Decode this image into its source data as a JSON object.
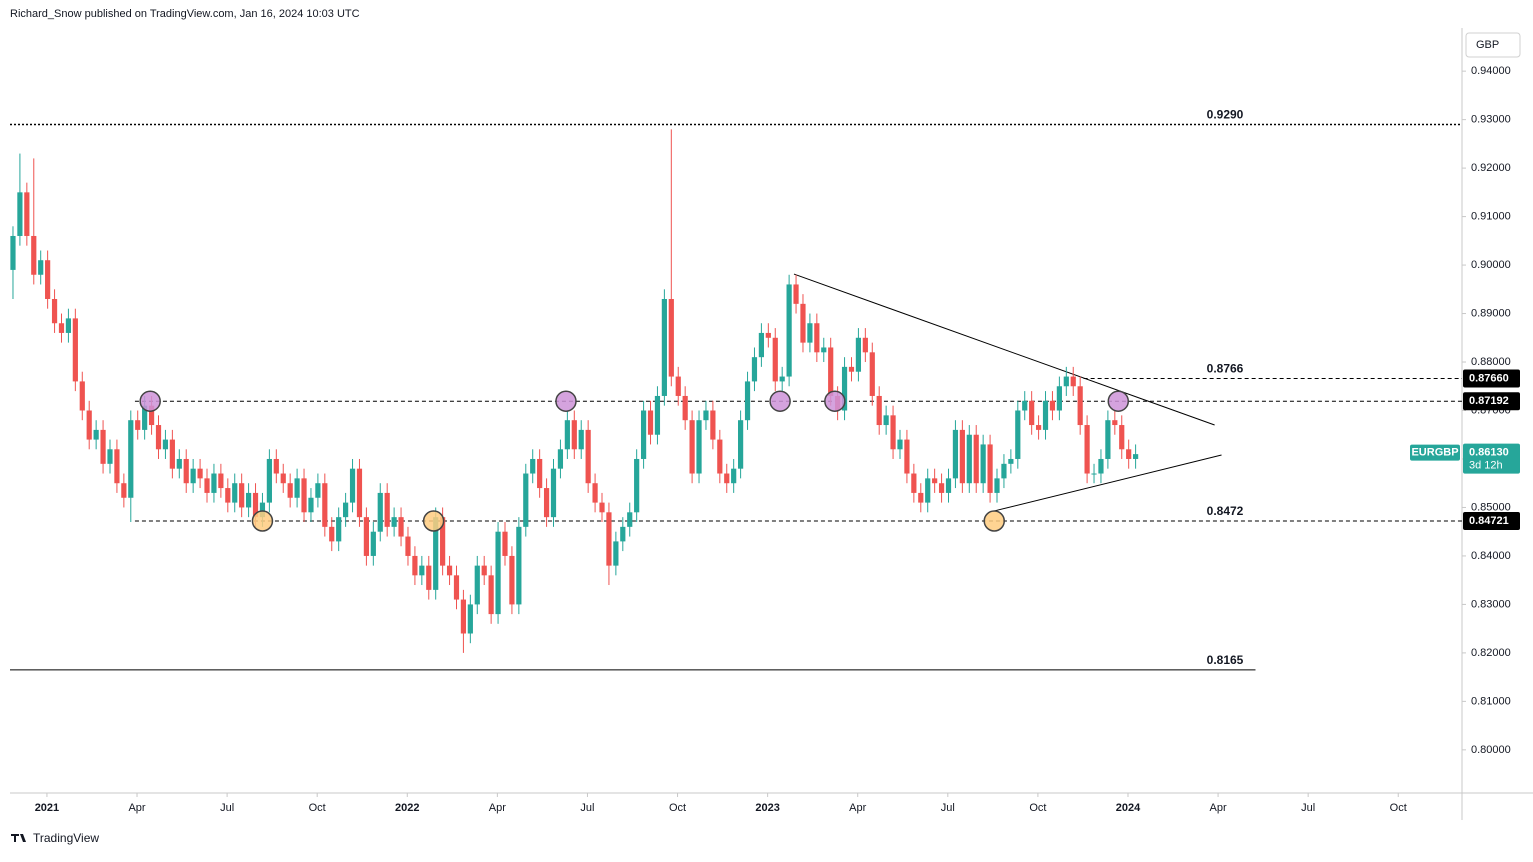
{
  "header": {
    "byline": "Richard_Snow published on TradingView.com, Jan 16, 2024 10:03 UTC"
  },
  "footer": {
    "brand": "TradingView"
  },
  "chart_data": {
    "type": "candlestick",
    "symbol": "EURGBP",
    "countdown": "3d 12h",
    "currency": "GBP",
    "up_color": "#26a69a",
    "down_color": "#ef5350",
    "open": [
      0.899,
      0.906,
      0.915,
      0.906,
      0.898,
      0.901,
      0.893,
      0.888,
      0.886,
      0.889,
      0.876,
      0.87,
      0.864,
      0.866,
      0.859,
      0.862,
      0.855,
      0.852,
      0.868,
      0.866,
      0.871,
      0.867,
      0.862,
      0.864,
      0.858,
      0.86,
      0.855,
      0.858,
      0.856,
      0.853,
      0.857,
      0.854,
      0.851,
      0.855,
      0.85,
      0.853,
      0.848,
      0.851,
      0.86,
      0.857,
      0.855,
      0.852,
      0.856,
      0.849,
      0.852,
      0.855,
      0.846,
      0.843,
      0.848,
      0.851,
      0.858,
      0.848,
      0.84,
      0.845,
      0.853,
      0.846,
      0.848,
      0.844,
      0.84,
      0.836,
      0.838,
      0.833,
      0.848,
      0.838,
      0.836,
      0.831,
      0.824,
      0.83,
      0.838,
      0.836,
      0.828,
      0.845,
      0.84,
      0.83,
      0.846,
      0.857,
      0.86,
      0.854,
      0.848,
      0.858,
      0.862,
      0.868,
      0.862,
      0.866,
      0.855,
      0.851,
      0.849,
      0.838,
      0.843,
      0.846,
      0.849,
      0.86,
      0.87,
      0.865,
      0.873,
      0.893,
      0.877,
      0.873,
      0.868,
      0.857,
      0.868,
      0.87,
      0.864,
      0.857,
      0.855,
      0.858,
      0.868,
      0.876,
      0.881,
      0.886,
      0.885,
      0.876,
      0.877,
      0.896,
      0.892,
      0.884,
      0.888,
      0.882,
      0.883,
      0.873,
      0.87,
      0.879,
      0.878,
      0.885,
      0.882,
      0.873,
      0.867,
      0.869,
      0.862,
      0.864,
      0.857,
      0.853,
      0.851,
      0.856,
      0.855,
      0.853,
      0.856,
      0.866,
      0.855,
      0.865,
      0.855,
      0.863,
      0.853,
      0.856,
      0.859,
      0.86,
      0.87,
      0.872,
      0.867,
      0.866,
      0.872,
      0.87,
      0.875,
      0.877,
      0.875,
      0.867,
      0.857,
      0.857,
      0.86,
      0.868,
      0.867,
      0.862,
      0.86
    ],
    "high": [
      0.908,
      0.923,
      0.917,
      0.922,
      0.903,
      0.903,
      0.895,
      0.89,
      0.891,
      0.891,
      0.878,
      0.872,
      0.868,
      0.868,
      0.864,
      0.864,
      0.857,
      0.87,
      0.87,
      0.873,
      0.873,
      0.869,
      0.866,
      0.866,
      0.862,
      0.862,
      0.86,
      0.86,
      0.858,
      0.859,
      0.859,
      0.856,
      0.857,
      0.857,
      0.855,
      0.855,
      0.853,
      0.862,
      0.862,
      0.859,
      0.857,
      0.858,
      0.858,
      0.854,
      0.857,
      0.857,
      0.848,
      0.85,
      0.853,
      0.86,
      0.86,
      0.85,
      0.847,
      0.855,
      0.855,
      0.85,
      0.85,
      0.846,
      0.842,
      0.84,
      0.84,
      0.85,
      0.85,
      0.84,
      0.838,
      0.833,
      0.832,
      0.84,
      0.84,
      0.838,
      0.847,
      0.847,
      0.842,
      0.848,
      0.859,
      0.862,
      0.862,
      0.856,
      0.86,
      0.864,
      0.87,
      0.87,
      0.868,
      0.868,
      0.857,
      0.853,
      0.851,
      0.845,
      0.848,
      0.851,
      0.862,
      0.872,
      0.872,
      0.875,
      0.895,
      0.928,
      0.879,
      0.875,
      0.87,
      0.87,
      0.872,
      0.872,
      0.866,
      0.859,
      0.86,
      0.87,
      0.878,
      0.883,
      0.888,
      0.888,
      0.887,
      0.879,
      0.898,
      0.898,
      0.894,
      0.89,
      0.89,
      0.885,
      0.885,
      0.875,
      0.881,
      0.881,
      0.887,
      0.887,
      0.884,
      0.875,
      0.871,
      0.871,
      0.866,
      0.866,
      0.859,
      0.855,
      0.858,
      0.858,
      0.857,
      0.858,
      0.868,
      0.868,
      0.867,
      0.867,
      0.865,
      0.865,
      0.858,
      0.861,
      0.862,
      0.872,
      0.874,
      0.874,
      0.869,
      0.874,
      0.874,
      0.877,
      0.879,
      0.879,
      0.877,
      0.869,
      0.859,
      0.862,
      0.87,
      0.87,
      0.869,
      0.864,
      0.863
    ],
    "low": [
      0.893,
      0.904,
      0.904,
      0.896,
      0.896,
      0.891,
      0.886,
      0.884,
      0.884,
      0.874,
      0.868,
      0.862,
      0.862,
      0.857,
      0.857,
      0.853,
      0.85,
      0.847,
      0.864,
      0.864,
      0.865,
      0.86,
      0.86,
      0.856,
      0.856,
      0.853,
      0.853,
      0.854,
      0.851,
      0.851,
      0.852,
      0.849,
      0.849,
      0.848,
      0.848,
      0.846,
      0.846,
      0.849,
      0.855,
      0.853,
      0.85,
      0.85,
      0.847,
      0.847,
      0.85,
      0.844,
      0.841,
      0.841,
      0.846,
      0.849,
      0.846,
      0.838,
      0.838,
      0.843,
      0.844,
      0.844,
      0.842,
      0.838,
      0.834,
      0.834,
      0.831,
      0.831,
      0.836,
      0.834,
      0.829,
      0.82,
      0.822,
      0.828,
      0.834,
      0.826,
      0.826,
      0.838,
      0.828,
      0.828,
      0.844,
      0.855,
      0.852,
      0.846,
      0.846,
      0.856,
      0.86,
      0.86,
      0.86,
      0.853,
      0.849,
      0.847,
      0.834,
      0.836,
      0.841,
      0.844,
      0.847,
      0.858,
      0.863,
      0.863,
      0.871,
      0.875,
      0.871,
      0.866,
      0.855,
      0.855,
      0.866,
      0.862,
      0.855,
      0.853,
      0.853,
      0.856,
      0.866,
      0.874,
      0.879,
      0.883,
      0.874,
      0.874,
      0.875,
      0.89,
      0.882,
      0.882,
      0.88,
      0.88,
      0.871,
      0.868,
      0.868,
      0.876,
      0.876,
      0.88,
      0.871,
      0.865,
      0.865,
      0.86,
      0.86,
      0.855,
      0.851,
      0.849,
      0.849,
      0.853,
      0.851,
      0.851,
      0.854,
      0.853,
      0.853,
      0.853,
      0.853,
      0.851,
      0.851,
      0.854,
      0.857,
      0.858,
      0.868,
      0.865,
      0.864,
      0.864,
      0.868,
      0.868,
      0.873,
      0.873,
      0.865,
      0.855,
      0.855,
      0.855,
      0.858,
      0.865,
      0.86,
      0.858,
      0.858
    ],
    "close": [
      0.906,
      0.915,
      0.906,
      0.898,
      0.901,
      0.893,
      0.888,
      0.886,
      0.889,
      0.876,
      0.87,
      0.864,
      0.866,
      0.859,
      0.862,
      0.855,
      0.852,
      0.868,
      0.866,
      0.871,
      0.867,
      0.862,
      0.864,
      0.858,
      0.86,
      0.855,
      0.858,
      0.856,
      0.853,
      0.857,
      0.854,
      0.851,
      0.855,
      0.85,
      0.853,
      0.848,
      0.851,
      0.86,
      0.857,
      0.855,
      0.852,
      0.856,
      0.849,
      0.852,
      0.855,
      0.846,
      0.843,
      0.848,
      0.851,
      0.858,
      0.848,
      0.84,
      0.845,
      0.853,
      0.846,
      0.848,
      0.844,
      0.84,
      0.836,
      0.838,
      0.833,
      0.848,
      0.838,
      0.836,
      0.831,
      0.824,
      0.83,
      0.838,
      0.836,
      0.828,
      0.845,
      0.84,
      0.83,
      0.846,
      0.857,
      0.86,
      0.854,
      0.848,
      0.858,
      0.862,
      0.868,
      0.862,
      0.866,
      0.855,
      0.851,
      0.849,
      0.838,
      0.843,
      0.846,
      0.849,
      0.86,
      0.87,
      0.865,
      0.873,
      0.893,
      0.877,
      0.873,
      0.868,
      0.857,
      0.868,
      0.87,
      0.864,
      0.857,
      0.855,
      0.858,
      0.868,
      0.876,
      0.881,
      0.886,
      0.885,
      0.876,
      0.877,
      0.896,
      0.892,
      0.884,
      0.888,
      0.882,
      0.883,
      0.873,
      0.87,
      0.879,
      0.878,
      0.885,
      0.882,
      0.873,
      0.867,
      0.869,
      0.862,
      0.864,
      0.857,
      0.853,
      0.851,
      0.856,
      0.855,
      0.853,
      0.856,
      0.866,
      0.855,
      0.865,
      0.855,
      0.863,
      0.853,
      0.856,
      0.859,
      0.86,
      0.87,
      0.872,
      0.867,
      0.866,
      0.872,
      0.87,
      0.875,
      0.877,
      0.875,
      0.867,
      0.857,
      0.857,
      0.86,
      0.868,
      0.867,
      0.862,
      0.86,
      0.861
    ],
    "xlim": [
      -0.43,
      209.1
    ],
    "xticks": [
      {
        "value": 4.9,
        "label": "2021"
      },
      {
        "value": 17.9,
        "label": "Apr"
      },
      {
        "value": 30.9,
        "label": "Jul"
      },
      {
        "value": 43.9,
        "label": "Oct"
      },
      {
        "value": 56.9,
        "label": "2022"
      },
      {
        "value": 69.9,
        "label": "Apr"
      },
      {
        "value": 82.9,
        "label": "Jul"
      },
      {
        "value": 95.9,
        "label": "Oct"
      },
      {
        "value": 108.9,
        "label": "2023"
      },
      {
        "value": 121.9,
        "label": "Apr"
      },
      {
        "value": 134.9,
        "label": "Jul"
      },
      {
        "value": 147.9,
        "label": "Oct"
      },
      {
        "value": 160.9,
        "label": "2024"
      },
      {
        "value": 173.9,
        "label": "Apr"
      },
      {
        "value": 186.9,
        "label": "Jul"
      },
      {
        "value": 199.9,
        "label": "Oct"
      }
    ],
    "ylim": [
      0.7911,
      0.9489
    ],
    "yticks": [
      {
        "value": 0.8,
        "label": "0.80000"
      },
      {
        "value": 0.81,
        "label": "0.81000"
      },
      {
        "value": 0.82,
        "label": "0.82000"
      },
      {
        "value": 0.83,
        "label": "0.83000"
      },
      {
        "value": 0.84,
        "label": "0.84000"
      },
      {
        "value": 0.85,
        "label": "0.85000"
      },
      {
        "value": 0.86,
        "label": "0.86000"
      },
      {
        "value": 0.87,
        "label": "0.87000"
      },
      {
        "value": 0.88,
        "label": "0.88000"
      },
      {
        "value": 0.89,
        "label": "0.89000"
      },
      {
        "value": 0.9,
        "label": "0.90000"
      },
      {
        "value": 0.91,
        "label": "0.91000"
      },
      {
        "value": 0.92,
        "label": "0.92000"
      },
      {
        "value": 0.93,
        "label": "0.93000"
      },
      {
        "value": 0.94,
        "label": "0.94000"
      }
    ],
    "levels": [
      {
        "value": 0.929,
        "label": "0.9290",
        "style": "dotted",
        "from": -0.43
      },
      {
        "value": 0.8766,
        "label": "0.8766",
        "style": "dashed",
        "from": 154.5
      },
      {
        "value": 0.87192,
        "style": "dashed",
        "from": 17.6
      },
      {
        "value": 0.84721,
        "label": "0.8472",
        "style": "dashed",
        "from": 17.6
      },
      {
        "value": 0.8165,
        "label": "0.8165",
        "style": "solid",
        "from": -0.43,
        "to": 179.3
      }
    ],
    "price_tags": [
      {
        "value": 0.8766,
        "label": "0.87660",
        "color": "#000000"
      },
      {
        "value": 0.87192,
        "label": "0.87192",
        "color": "#000000"
      },
      {
        "value": 0.84721,
        "label": "0.84721",
        "color": "#000000"
      }
    ],
    "last_price": {
      "value": 0.8613,
      "label": "0.86130",
      "color": "#26a69a"
    },
    "trendlines": [
      {
        "x": [
          112.7,
          173.4
        ],
        "y": [
          0.89814,
          0.86701
        ]
      },
      {
        "x": [
          141.6,
          174.4
        ],
        "y": [
          0.84928,
          0.86082
        ]
      }
    ],
    "markers": [
      {
        "x": 19.8,
        "y": 0.87192,
        "color": "#ce93d8"
      },
      {
        "x": 79.8,
        "y": 0.87192,
        "color": "#ce93d8"
      },
      {
        "x": 110.7,
        "y": 0.87192,
        "color": "#ce93d8"
      },
      {
        "x": 118.6,
        "y": 0.87192,
        "color": "#ce93d8"
      },
      {
        "x": 159.5,
        "y": 0.87192,
        "color": "#ce93d8"
      },
      {
        "x": 36,
        "y": 0.84721,
        "color": "#ffcc80"
      },
      {
        "x": 60.7,
        "y": 0.84721,
        "color": "#ffcc80"
      },
      {
        "x": 141.6,
        "y": 0.84721,
        "color": "#ffcc80"
      }
    ]
  }
}
